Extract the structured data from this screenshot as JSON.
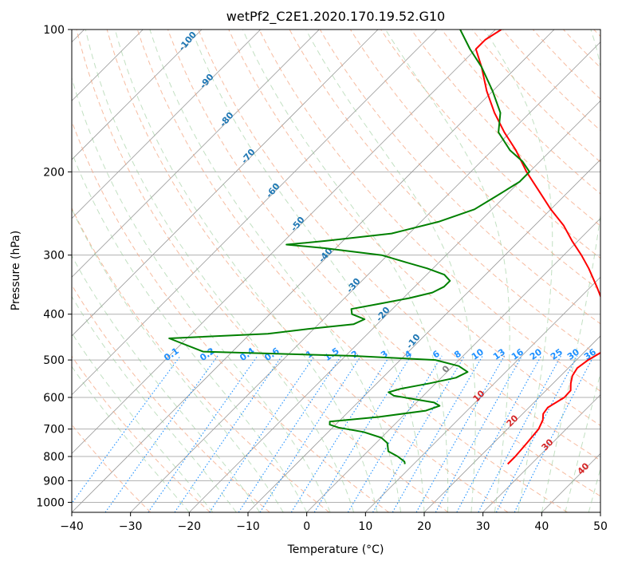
{
  "chart_data": {
    "type": "line",
    "chart_kind": "skew-t log-p",
    "title": "wetPf2_C2E1.2020.170.19.52.G10",
    "xlabel": "Temperature (°C)",
    "ylabel": "Pressure (hPa)",
    "xlim": [
      -40,
      50
    ],
    "ylim": [
      1050,
      100
    ],
    "y_scale": "log",
    "skew_degrees": 45,
    "x_ticks": [
      "−40",
      "−30",
      "−20",
      "−10",
      "0",
      "10",
      "20",
      "30",
      "40",
      "50"
    ],
    "y_ticks": [
      "100",
      "200",
      "300",
      "400",
      "500",
      "600",
      "700",
      "800",
      "900",
      "1000"
    ],
    "series": [
      {
        "color": "#ff0000",
        "points": [
          [
            830,
            26.0
          ],
          [
            800,
            26.0
          ],
          [
            750,
            25.7
          ],
          [
            700,
            25.3
          ],
          [
            670,
            24.5
          ],
          [
            650,
            23.5
          ],
          [
            630,
            23.2
          ],
          [
            600,
            24.3
          ],
          [
            580,
            24.2
          ],
          [
            560,
            23.0
          ],
          [
            540,
            22.0
          ],
          [
            520,
            21.5
          ],
          [
            500,
            22.0
          ],
          [
            480,
            23.0
          ],
          [
            460,
            22.0
          ],
          [
            440,
            20.0
          ],
          [
            420,
            19.5
          ],
          [
            400,
            17.0
          ],
          [
            380,
            15.0
          ],
          [
            350,
            11.0
          ],
          [
            320,
            6.5
          ],
          [
            300,
            3.0
          ],
          [
            280,
            -1.0
          ],
          [
            260,
            -5.0
          ],
          [
            240,
            -10.0
          ],
          [
            220,
            -15.0
          ],
          [
            200,
            -20.5
          ],
          [
            180,
            -26.0
          ],
          [
            165,
            -31.0
          ],
          [
            150,
            -36.0
          ],
          [
            135,
            -41.0
          ],
          [
            120,
            -46.0
          ],
          [
            110,
            -50.0
          ],
          [
            105,
            -50.0
          ],
          [
            100,
            -49.0
          ]
        ]
      },
      {
        "color": "#008000",
        "points": [
          [
            830,
            8.5
          ],
          [
            820,
            8.0
          ],
          [
            800,
            6.0
          ],
          [
            780,
            3.5
          ],
          [
            760,
            2.5
          ],
          [
            750,
            2.0
          ],
          [
            730,
            0.0
          ],
          [
            710,
            -4.0
          ],
          [
            695,
            -9.0
          ],
          [
            685,
            -11.0
          ],
          [
            675,
            -11.5
          ],
          [
            660,
            -4.0
          ],
          [
            640,
            3.0
          ],
          [
            625,
            4.5
          ],
          [
            615,
            3.0
          ],
          [
            605,
            -1.0
          ],
          [
            595,
            -5.0
          ],
          [
            585,
            -6.5
          ],
          [
            575,
            -5.0
          ],
          [
            560,
            -1.0
          ],
          [
            545,
            2.5
          ],
          [
            530,
            3.5
          ],
          [
            515,
            1.0
          ],
          [
            500,
            -4.0
          ],
          [
            490,
            -19.0
          ],
          [
            480,
            -45.0
          ],
          [
            450,
            -53.0
          ],
          [
            440,
            -37.0
          ],
          [
            430,
            -31.0
          ],
          [
            420,
            -24.0
          ],
          [
            410,
            -23.0
          ],
          [
            400,
            -26.0
          ],
          [
            390,
            -27.0
          ],
          [
            380,
            -23.0
          ],
          [
            370,
            -19.0
          ],
          [
            360,
            -16.0
          ],
          [
            350,
            -15.0
          ],
          [
            340,
            -15.0
          ],
          [
            330,
            -17.0
          ],
          [
            320,
            -21.0
          ],
          [
            310,
            -26.0
          ],
          [
            300,
            -31.0
          ],
          [
            290,
            -42.0
          ],
          [
            285,
            -49.0
          ],
          [
            280,
            -43.0
          ],
          [
            270,
            -33.0
          ],
          [
            255,
            -27.0
          ],
          [
            240,
            -23.0
          ],
          [
            225,
            -21.5
          ],
          [
            210,
            -20.0
          ],
          [
            200,
            -20.0
          ],
          [
            190,
            -23.0
          ],
          [
            180,
            -27.0
          ],
          [
            165,
            -32.0
          ],
          [
            150,
            -35.0
          ],
          [
            135,
            -40.0
          ],
          [
            120,
            -46.0
          ],
          [
            110,
            -51.0
          ],
          [
            100,
            -56.0
          ]
        ]
      }
    ],
    "dry_adiabat_labels": [
      "-100",
      "-90",
      "-80",
      "-70",
      "-60",
      "-50",
      "-40",
      "-30",
      "-20",
      "-10",
      "0"
    ],
    "moist_adiabat_labels": [
      "10",
      "20",
      "30",
      "40"
    ],
    "mixing_ratio_labels": [
      "0.1",
      "0.2",
      "0.4",
      "0.6",
      "1",
      "1.5",
      "2",
      "3",
      "4",
      "6",
      "8",
      "10",
      "13",
      "16",
      "20",
      "25",
      "30",
      "36"
    ],
    "mixing_ratio_values": [
      0.1,
      0.2,
      0.4,
      0.6,
      1,
      1.5,
      2,
      3,
      4,
      6,
      8,
      10,
      13,
      16,
      20,
      25,
      30,
      36
    ],
    "grid": true,
    "colors": {
      "temperature": "#ff0000",
      "dewpoint": "#008000",
      "isotherms": "#999999",
      "dry_adiabats": "#f4a582",
      "moist_adiabats": "#99cc99",
      "mixing_ratio": "#1e90ff"
    }
  }
}
